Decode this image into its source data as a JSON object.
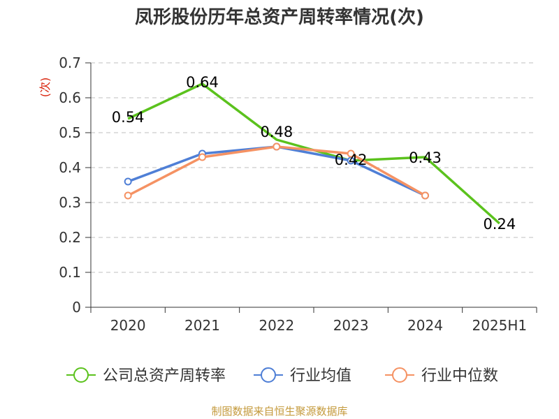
{
  "chart_data": {
    "type": "line",
    "title": "凤形股份历年总资产周转率情况(次)",
    "ylabel": "(次)",
    "xlabel": "",
    "categories": [
      "2020",
      "2021",
      "2022",
      "2023",
      "2024",
      "2025H1"
    ],
    "ylim": [
      0,
      0.7
    ],
    "yticks": [
      "0",
      "0.1",
      "0.2",
      "0.3",
      "0.4",
      "0.5",
      "0.6",
      "0.7"
    ],
    "grid": true,
    "legend_position": "bottom",
    "series": [
      {
        "name": "公司总资产周转率",
        "color": "#5bc21d",
        "values": [
          0.54,
          0.64,
          0.48,
          0.42,
          0.43,
          0.24
        ],
        "labels": [
          "0.54",
          "0.64",
          "0.48",
          "0.42",
          "0.43",
          "0.24"
        ],
        "markers": false
      },
      {
        "name": "行业均值",
        "color": "#4f7fd6",
        "values": [
          0.36,
          0.44,
          0.46,
          0.42,
          0.32,
          null
        ],
        "markers": true
      },
      {
        "name": "行业中位数",
        "color": "#f59263",
        "values": [
          0.32,
          0.43,
          0.46,
          0.44,
          0.32,
          null
        ],
        "markers": true
      }
    ]
  },
  "source": "制图数据来自恒生聚源数据库"
}
